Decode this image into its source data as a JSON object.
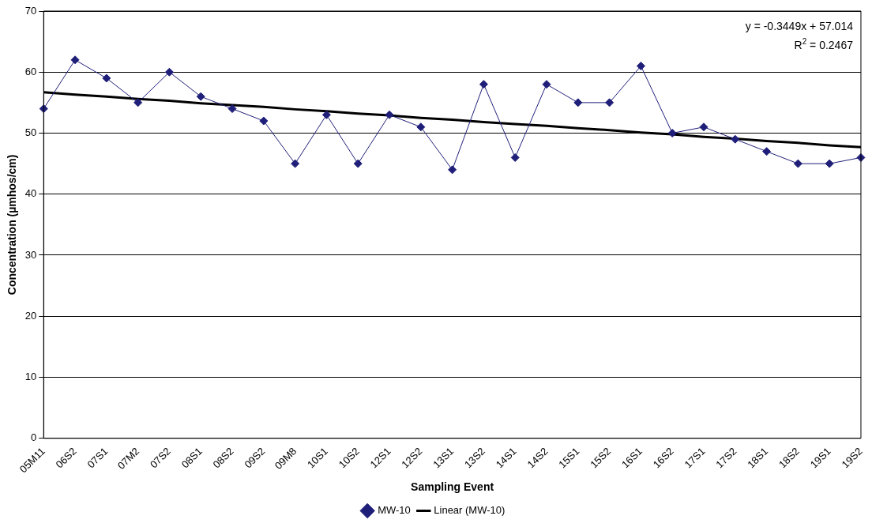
{
  "chart_data": {
    "type": "line",
    "xlabel": "Sampling Event",
    "ylabel": "Concentration (µmhos/cm)",
    "categories": [
      "05M11",
      "06S2",
      "07S1",
      "07M2",
      "07S2",
      "08S1",
      "08S2",
      "09S2",
      "09M8",
      "10S1",
      "10S2",
      "12S1",
      "12S2",
      "13S1",
      "13S2",
      "14S1",
      "14S2",
      "15S1",
      "15S2",
      "16S1",
      "16S2",
      "17S1",
      "17S2",
      "18S1",
      "18S2",
      "19S1",
      "19S2"
    ],
    "series": [
      {
        "name": "MW-10",
        "color": "#1f1f7a",
        "marker": "diamond",
        "values": [
          54,
          62,
          59,
          55,
          60,
          56,
          54,
          52,
          45,
          53,
          45,
          53,
          51,
          44,
          58,
          46,
          58,
          55,
          55,
          61,
          50,
          51,
          49,
          47,
          45,
          45,
          46
        ]
      },
      {
        "name": "Linear (MW-10)",
        "color": "#000000",
        "marker": "none",
        "values": [
          56.7,
          56.3,
          56.0,
          55.6,
          55.3,
          54.9,
          54.6,
          54.3,
          53.9,
          53.6,
          53.2,
          52.9,
          52.5,
          52.2,
          51.8,
          51.5,
          51.2,
          50.8,
          50.5,
          50.1,
          49.8,
          49.4,
          49.1,
          48.7,
          48.4,
          48.0,
          47.7
        ]
      }
    ],
    "ylim": [
      0,
      70
    ],
    "yticks": [
      0,
      10,
      20,
      30,
      40,
      50,
      60,
      70
    ],
    "grid": "y",
    "legend": "bottom",
    "annotations": [
      "y = -0.3449x + 57.014",
      "R$^{2}$ = 0.2467"
    ]
  }
}
